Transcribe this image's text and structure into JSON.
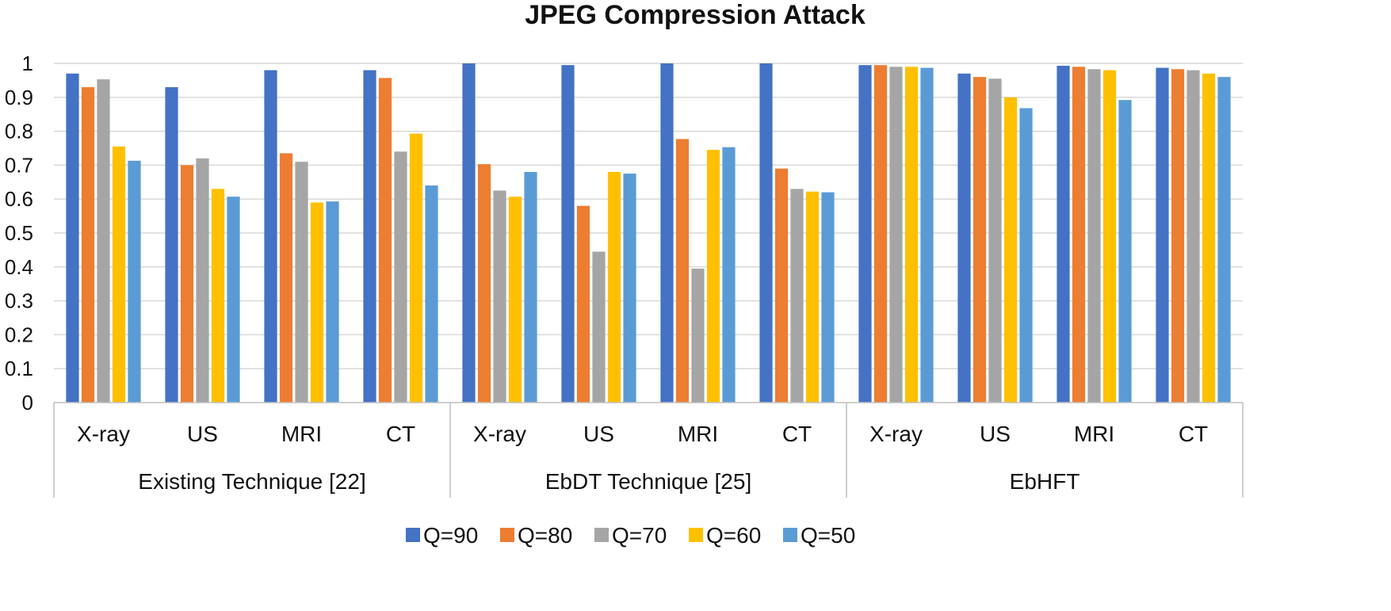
{
  "chart_data": {
    "type": "bar",
    "title": "JPEG Compression Attack",
    "xlabel": "",
    "ylabel": "",
    "ylim": [
      0,
      1
    ],
    "yticks": [
      "0",
      "0.1",
      "0.2",
      "0.3",
      "0.4",
      "0.5",
      "0.6",
      "0.7",
      "0.8",
      "0.9",
      "1"
    ],
    "grid": true,
    "legend_position": "bottom",
    "groups": [
      {
        "label": "Existing Technique [22]",
        "categories": [
          "X-ray",
          "US",
          "MRI",
          "CT"
        ]
      },
      {
        "label": "EbDT Technique [25]",
        "categories": [
          "X-ray",
          "US",
          "MRI",
          "CT"
        ]
      },
      {
        "label": "EbHFT",
        "categories": [
          "X-ray",
          "US",
          "MRI",
          "CT"
        ]
      }
    ],
    "series": [
      {
        "name": "Q=90",
        "color": "#4472C4",
        "values": [
          0.97,
          0.93,
          0.98,
          0.98,
          1.0,
          0.995,
          1.0,
          1.0,
          0.995,
          0.97,
          0.993,
          0.987
        ]
      },
      {
        "name": "Q=80",
        "color": "#ED7D31",
        "values": [
          0.93,
          0.7,
          0.735,
          0.957,
          0.703,
          0.58,
          0.777,
          0.69,
          0.995,
          0.96,
          0.99,
          0.983
        ]
      },
      {
        "name": "Q=70",
        "color": "#A5A5A5",
        "values": [
          0.953,
          0.72,
          0.71,
          0.74,
          0.625,
          0.445,
          0.395,
          0.63,
          0.99,
          0.955,
          0.983,
          0.98
        ]
      },
      {
        "name": "Q=60",
        "color": "#FFC000",
        "values": [
          0.755,
          0.63,
          0.59,
          0.793,
          0.607,
          0.68,
          0.745,
          0.622,
          0.99,
          0.9,
          0.98,
          0.97
        ]
      },
      {
        "name": "Q=50",
        "color": "#5B9BD5",
        "values": [
          0.713,
          0.607,
          0.593,
          0.64,
          0.68,
          0.675,
          0.753,
          0.62,
          0.987,
          0.868,
          0.892,
          0.96
        ]
      }
    ]
  }
}
